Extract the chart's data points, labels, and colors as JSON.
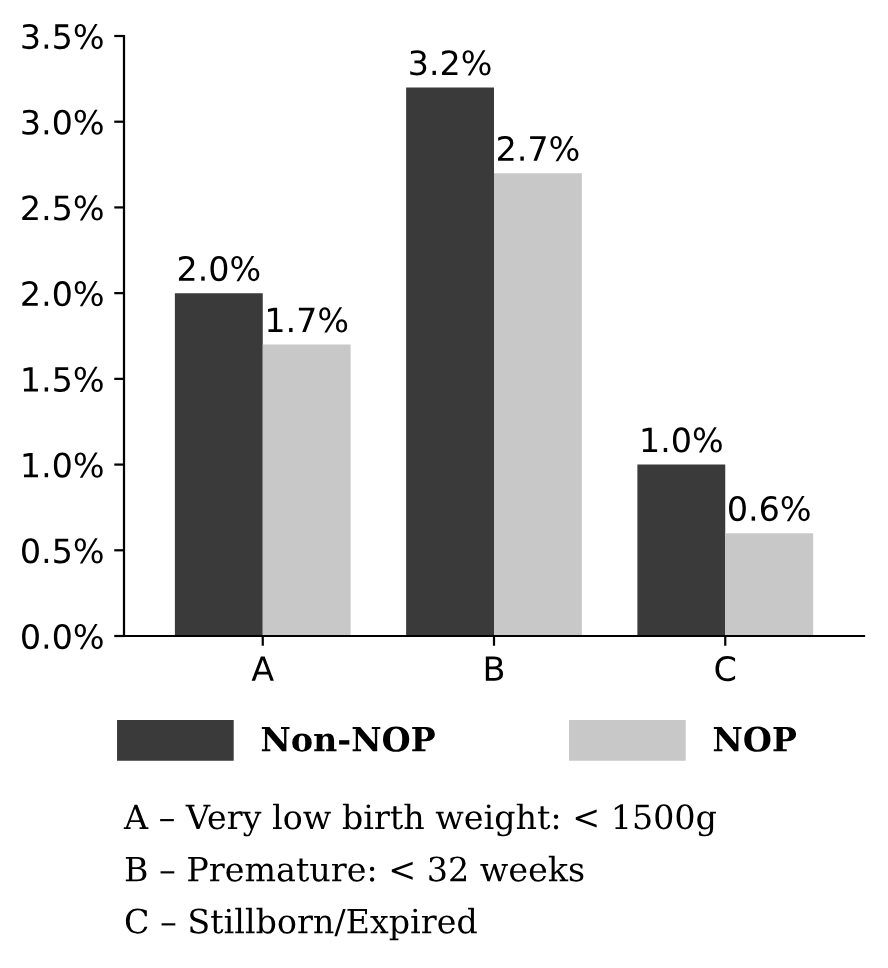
{
  "chart_data": {
    "type": "bar",
    "categories": [
      "A",
      "B",
      "C"
    ],
    "series": [
      {
        "name": "Non-NOP",
        "color": "#3a3a3a",
        "values": [
          2.0,
          3.2,
          1.0
        ],
        "value_labels": [
          "2.0%",
          "3.2%",
          "1.0%"
        ]
      },
      {
        "name": "NOP",
        "color": "#c8c8c8",
        "values": [
          1.7,
          2.7,
          0.6
        ],
        "value_labels": [
          "1.7%",
          "2.7%",
          "0.6%"
        ]
      }
    ],
    "ylim": [
      0,
      3.5
    ],
    "yticks": [
      {
        "value": 0,
        "label": "0.0%"
      },
      {
        "value": 0.5,
        "label": "0.5%"
      },
      {
        "value": 1.0,
        "label": "1.0%"
      },
      {
        "value": 1.5,
        "label": "1.5%"
      },
      {
        "value": 2.0,
        "label": "2.0%"
      },
      {
        "value": 2.5,
        "label": "2.5%"
      },
      {
        "value": 3.0,
        "label": "3.0%"
      },
      {
        "value": 3.5,
        "label": "3.5%"
      }
    ],
    "grid": false,
    "legend": "bottom",
    "annotations": [
      "A – Very low birth weight: < 1500g",
      "B – Premature: < 32 weeks",
      "C – Stillborn/Expired"
    ]
  }
}
